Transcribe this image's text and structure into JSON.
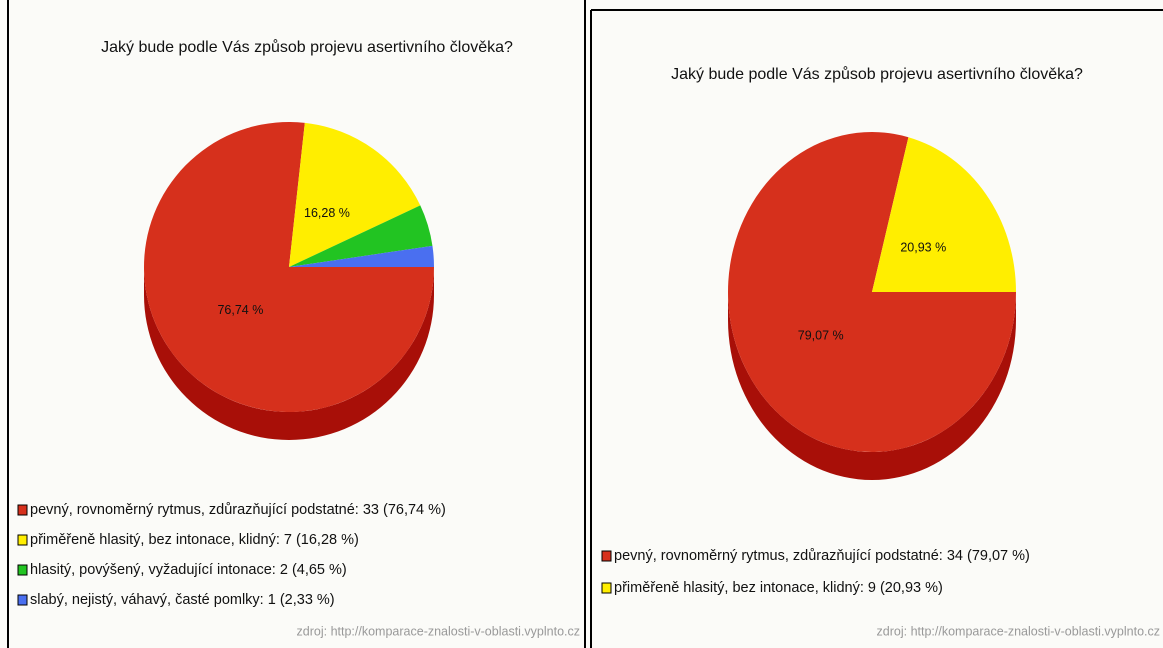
{
  "chart_data": [
    {
      "type": "pie",
      "title": "Jaký bude podle Vás způsob projevu asertivního člověka?",
      "categories": [
        "pevný, rovnoměrný rytmus, zdůrazňující podstatné: 33 (76,74 %)",
        "přiměřeně hlasitý, bez intonace, klidný: 7 (16,28 %)",
        "hlasitý, povýšený, vyžadující intonace: 2 (4,65 %)",
        "slabý, nejistý, váhavý, časté pomlky: 1 (2,33 %)"
      ],
      "values": [
        76.74,
        16.28,
        4.65,
        2.33
      ],
      "value_labels": [
        "76,74 %",
        "16,28 %",
        null,
        null
      ],
      "colors": [
        "#d6301c",
        "#ffee00",
        "#22c422",
        "#4a6ff0"
      ],
      "source": "zdroj: http://komparace-znalosti-v-oblasti.vyplnto.cz"
    },
    {
      "type": "pie",
      "title": "Jaký bude podle Vás způsob projevu asertivního člověka?",
      "categories": [
        "pevný, rovnoměrný rytmus, zdůrazňující podstatné: 34 (79,07 %)",
        "přiměřeně hlasitý, bez intonace, klidný: 9 (20,93 %)"
      ],
      "values": [
        79.07,
        20.93
      ],
      "value_labels": [
        "79,07 %",
        "20,93 %"
      ],
      "colors": [
        "#d6301c",
        "#ffee00"
      ],
      "source": "zdroj: http://komparace-znalosti-v-oblasti.vyplnto.cz"
    }
  ]
}
